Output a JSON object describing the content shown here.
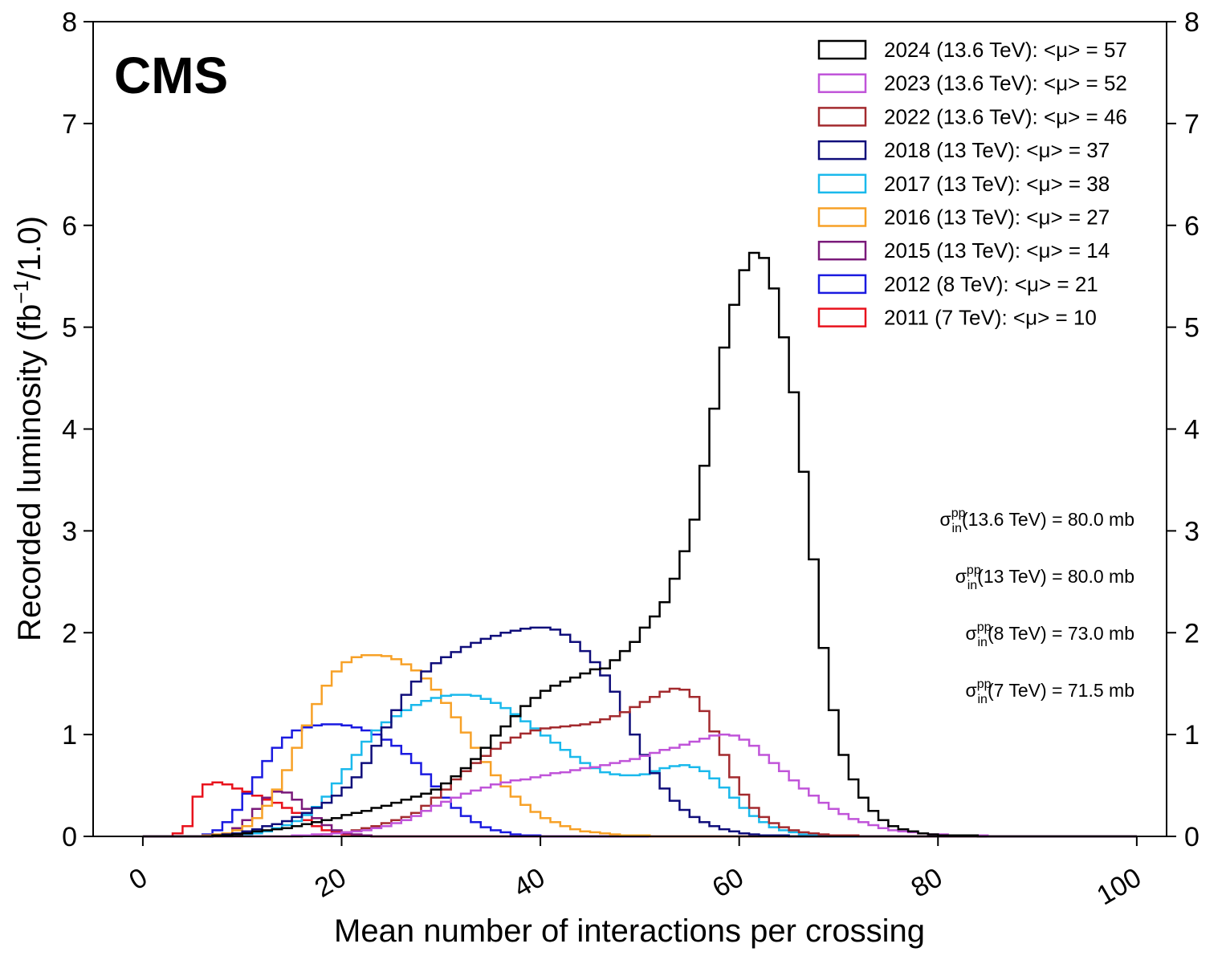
{
  "chart_data": {
    "type": "step-histogram",
    "experiment_label": "CMS",
    "xlabel": "Mean number of interactions per crossing",
    "ylabel": {
      "prefix": "Recorded luminosity (fb",
      "sup": "−1",
      "suffix": "/1.0)"
    },
    "xlim": [
      -5,
      103
    ],
    "ylim": [
      0,
      8
    ],
    "x_ticks": [
      0,
      20,
      40,
      60,
      80,
      100
    ],
    "x_tick_labels": [
      "0",
      "20",
      "40",
      "60",
      "80",
      "100"
    ],
    "y_ticks": [
      0,
      1,
      2,
      3,
      4,
      5,
      6,
      7,
      8
    ],
    "y_tick_labels": [
      "0",
      "1",
      "2",
      "3",
      "4",
      "5",
      "6",
      "7",
      "8"
    ],
    "grid": false,
    "legend_position": "top-right",
    "bin_width": 1,
    "cross_sections": [
      {
        "sym": "σ",
        "sup": "pp",
        "sub": "in",
        "text": "(13.6 TeV) = 80.0 mb"
      },
      {
        "sym": "σ",
        "sup": "pp",
        "sub": "in",
        "text": "(13 TeV) = 80.0 mb"
      },
      {
        "sym": "σ",
        "sup": "pp",
        "sub": "in",
        "text": "(8 TeV) = 73.0 mb"
      },
      {
        "sym": "σ",
        "sup": "pp",
        "sub": "in",
        "text": "(7 TeV) = 71.5 mb"
      }
    ],
    "series": [
      {
        "name": "2024 (13.6 TeV): <μ> = 57",
        "color": "#000000",
        "x_start": 0,
        "values": [
          0,
          0,
          0,
          0,
          0,
          0,
          0,
          0.01,
          0.01,
          0.02,
          0.03,
          0.05,
          0.06,
          0.07,
          0.08,
          0.1,
          0.12,
          0.14,
          0.16,
          0.18,
          0.21,
          0.23,
          0.25,
          0.28,
          0.3,
          0.33,
          0.36,
          0.39,
          0.42,
          0.46,
          0.52,
          0.59,
          0.67,
          0.76,
          0.87,
          0.99,
          1.08,
          1.18,
          1.28,
          1.36,
          1.43,
          1.48,
          1.52,
          1.56,
          1.6,
          1.64,
          1.65,
          1.73,
          1.82,
          1.91,
          2.05,
          2.16,
          2.3,
          2.53,
          2.8,
          3.11,
          3.64,
          4.2,
          4.8,
          5.22,
          5.56,
          5.73,
          5.68,
          5.38,
          4.9,
          4.36,
          3.58,
          2.72,
          1.85,
          1.24,
          0.8,
          0.56,
          0.38,
          0.25,
          0.16,
          0.1,
          0.07,
          0.05,
          0.03,
          0.02,
          0.01,
          0.01,
          0.01,
          0.01,
          0,
          0,
          0,
          0,
          0,
          0,
          0,
          0,
          0,
          0,
          0,
          0,
          0,
          0,
          0,
          0
        ]
      },
      {
        "name": "2023 (13.6 TeV): <μ> = 52",
        "color": "#c054d9",
        "x_start": 0,
        "values": [
          0,
          0,
          0,
          0,
          0,
          0,
          0,
          0,
          0,
          0,
          0,
          0,
          0,
          0,
          0,
          0.01,
          0.01,
          0.02,
          0.02,
          0.03,
          0.04,
          0.05,
          0.06,
          0.08,
          0.1,
          0.13,
          0.16,
          0.2,
          0.25,
          0.3,
          0.34,
          0.38,
          0.42,
          0.45,
          0.48,
          0.51,
          0.53,
          0.55,
          0.56,
          0.58,
          0.6,
          0.62,
          0.63,
          0.65,
          0.67,
          0.68,
          0.7,
          0.72,
          0.74,
          0.76,
          0.79,
          0.82,
          0.85,
          0.87,
          0.9,
          0.93,
          0.96,
          0.99,
          1.0,
          0.99,
          0.95,
          0.89,
          0.8,
          0.72,
          0.64,
          0.55,
          0.47,
          0.4,
          0.33,
          0.27,
          0.22,
          0.17,
          0.14,
          0.11,
          0.08,
          0.06,
          0.05,
          0.04,
          0.03,
          0.02,
          0.02,
          0.01,
          0.01,
          0.01,
          0.01,
          0,
          0,
          0,
          0,
          0,
          0,
          0,
          0,
          0,
          0,
          0,
          0,
          0,
          0,
          0
        ]
      },
      {
        "name": "2022 (13.6 TeV): <μ> = 46",
        "color": "#a32a2e",
        "x_start": 0,
        "values": [
          0,
          0,
          0,
          0,
          0,
          0,
          0,
          0,
          0,
          0,
          0,
          0,
          0,
          0,
          0,
          0,
          0.01,
          0.01,
          0.02,
          0.03,
          0.04,
          0.06,
          0.08,
          0.1,
          0.13,
          0.16,
          0.19,
          0.23,
          0.3,
          0.38,
          0.46,
          0.56,
          0.64,
          0.72,
          0.79,
          0.86,
          0.92,
          0.97,
          1.01,
          1.04,
          1.06,
          1.07,
          1.08,
          1.09,
          1.1,
          1.12,
          1.15,
          1.18,
          1.22,
          1.27,
          1.32,
          1.37,
          1.42,
          1.45,
          1.44,
          1.37,
          1.23,
          1.03,
          0.8,
          0.58,
          0.41,
          0.28,
          0.19,
          0.13,
          0.09,
          0.06,
          0.04,
          0.03,
          0.02,
          0.01,
          0.01,
          0.01,
          0,
          0,
          0,
          0,
          0,
          0,
          0,
          0,
          0,
          0,
          0,
          0,
          0,
          0,
          0,
          0,
          0,
          0,
          0,
          0,
          0,
          0,
          0,
          0,
          0,
          0,
          0,
          0
        ]
      },
      {
        "name": "2018 (13 TeV): <μ> = 37",
        "color": "#0f0d7a",
        "x_start": 0,
        "values": [
          0,
          0,
          0,
          0,
          0,
          0,
          0,
          0.01,
          0.02,
          0.03,
          0.05,
          0.07,
          0.1,
          0.12,
          0.15,
          0.19,
          0.23,
          0.28,
          0.33,
          0.4,
          0.48,
          0.58,
          0.72,
          0.89,
          1.07,
          1.24,
          1.39,
          1.52,
          1.62,
          1.7,
          1.76,
          1.81,
          1.86,
          1.9,
          1.94,
          1.97,
          2.0,
          2.02,
          2.04,
          2.05,
          2.05,
          2.03,
          1.98,
          1.91,
          1.82,
          1.71,
          1.58,
          1.42,
          1.22,
          1.0,
          0.8,
          0.62,
          0.47,
          0.35,
          0.26,
          0.19,
          0.14,
          0.1,
          0.07,
          0.05,
          0.03,
          0.02,
          0.01,
          0.01,
          0.01,
          0,
          0,
          0,
          0,
          0,
          0,
          0,
          0,
          0,
          0,
          0,
          0,
          0,
          0,
          0,
          0,
          0,
          0,
          0,
          0,
          0,
          0,
          0,
          0,
          0,
          0,
          0,
          0,
          0,
          0,
          0,
          0,
          0,
          0,
          0
        ]
      },
      {
        "name": "2017 (13 TeV): <μ> = 38",
        "color": "#1ab9ec",
        "x_start": 0,
        "values": [
          0,
          0,
          0,
          0,
          0,
          0,
          0,
          0,
          0,
          0.01,
          0.02,
          0.03,
          0.05,
          0.08,
          0.11,
          0.15,
          0.21,
          0.29,
          0.39,
          0.52,
          0.66,
          0.8,
          0.93,
          1.04,
          1.12,
          1.18,
          1.24,
          1.29,
          1.33,
          1.36,
          1.38,
          1.39,
          1.39,
          1.38,
          1.35,
          1.31,
          1.26,
          1.2,
          1.13,
          1.06,
          0.99,
          0.92,
          0.85,
          0.78,
          0.72,
          0.67,
          0.63,
          0.61,
          0.6,
          0.6,
          0.61,
          0.64,
          0.67,
          0.69,
          0.7,
          0.68,
          0.64,
          0.57,
          0.48,
          0.38,
          0.28,
          0.2,
          0.14,
          0.09,
          0.06,
          0.04,
          0.02,
          0.01,
          0.01,
          0,
          0,
          0,
          0,
          0,
          0,
          0,
          0,
          0,
          0,
          0,
          0,
          0,
          0,
          0,
          0,
          0,
          0,
          0,
          0,
          0,
          0,
          0,
          0,
          0,
          0,
          0,
          0,
          0,
          0,
          0
        ]
      },
      {
        "name": "2016 (13 TeV): <μ> = 27",
        "color": "#f7a127",
        "x_start": 0,
        "values": [
          0,
          0,
          0,
          0,
          0,
          0,
          0.01,
          0.02,
          0.03,
          0.06,
          0.1,
          0.18,
          0.3,
          0.46,
          0.65,
          0.87,
          1.09,
          1.3,
          1.48,
          1.62,
          1.71,
          1.76,
          1.78,
          1.78,
          1.77,
          1.74,
          1.69,
          1.63,
          1.55,
          1.44,
          1.31,
          1.17,
          1.02,
          0.87,
          0.73,
          0.6,
          0.49,
          0.39,
          0.31,
          0.24,
          0.18,
          0.14,
          0.1,
          0.07,
          0.05,
          0.04,
          0.03,
          0.02,
          0.01,
          0.01,
          0.01,
          0,
          0,
          0,
          0,
          0,
          0,
          0,
          0,
          0,
          0,
          0,
          0,
          0,
          0,
          0,
          0,
          0,
          0,
          0,
          0,
          0,
          0,
          0,
          0,
          0,
          0,
          0,
          0,
          0,
          0,
          0,
          0,
          0,
          0,
          0,
          0,
          0,
          0,
          0,
          0,
          0,
          0,
          0,
          0,
          0,
          0,
          0,
          0,
          0
        ]
      },
      {
        "name": "2015 (13 TeV): <μ> = 14",
        "color": "#7a1a7a",
        "x_start": 0,
        "values": [
          0,
          0,
          0,
          0,
          0,
          0,
          0,
          0.01,
          0.03,
          0.08,
          0.16,
          0.27,
          0.38,
          0.44,
          0.43,
          0.36,
          0.27,
          0.18,
          0.11,
          0.06,
          0.03,
          0.02,
          0.01,
          0,
          0,
          0,
          0,
          0,
          0,
          0,
          0,
          0,
          0,
          0,
          0,
          0,
          0,
          0,
          0,
          0,
          0,
          0,
          0,
          0,
          0,
          0,
          0,
          0,
          0,
          0,
          0,
          0,
          0,
          0,
          0,
          0,
          0,
          0,
          0,
          0,
          0,
          0,
          0,
          0,
          0,
          0,
          0,
          0,
          0,
          0,
          0,
          0,
          0,
          0,
          0,
          0,
          0,
          0,
          0,
          0,
          0,
          0,
          0,
          0,
          0,
          0,
          0,
          0,
          0,
          0,
          0,
          0,
          0,
          0,
          0,
          0,
          0,
          0,
          0,
          0
        ]
      },
      {
        "name": "2012 (8 TeV): <μ> = 21",
        "color": "#1a1ae0",
        "x_start": 0,
        "values": [
          0,
          0,
          0,
          0,
          0,
          0,
          0.02,
          0.06,
          0.14,
          0.26,
          0.42,
          0.58,
          0.74,
          0.87,
          0.97,
          1.04,
          1.07,
          1.09,
          1.1,
          1.1,
          1.09,
          1.07,
          1.04,
          1.0,
          0.95,
          0.89,
          0.81,
          0.72,
          0.61,
          0.49,
          0.38,
          0.28,
          0.2,
          0.14,
          0.09,
          0.06,
          0.04,
          0.02,
          0.01,
          0.01,
          0,
          0,
          0,
          0,
          0,
          0,
          0,
          0,
          0,
          0,
          0,
          0,
          0,
          0,
          0,
          0,
          0,
          0,
          0,
          0,
          0,
          0,
          0,
          0,
          0,
          0,
          0,
          0,
          0,
          0,
          0,
          0,
          0,
          0,
          0,
          0,
          0,
          0,
          0,
          0,
          0,
          0,
          0,
          0,
          0,
          0,
          0,
          0,
          0,
          0,
          0,
          0,
          0,
          0,
          0,
          0,
          0,
          0,
          0,
          0
        ]
      },
      {
        "name": "2011 (7 TeV): <μ> = 10",
        "color": "#e8121c",
        "x_start": 0,
        "values": [
          0,
          0,
          0,
          0.03,
          0.1,
          0.39,
          0.51,
          0.53,
          0.51,
          0.47,
          0.44,
          0.4,
          0.36,
          0.33,
          0.28,
          0.23,
          0.16,
          0.1,
          0.06,
          0.04,
          0.02,
          0.01,
          0.01,
          0,
          0,
          0,
          0,
          0,
          0,
          0,
          0,
          0,
          0,
          0,
          0,
          0,
          0,
          0,
          0,
          0,
          0,
          0,
          0,
          0,
          0,
          0,
          0,
          0,
          0,
          0,
          0,
          0,
          0,
          0,
          0,
          0,
          0,
          0,
          0,
          0,
          0,
          0,
          0,
          0,
          0,
          0,
          0,
          0,
          0,
          0,
          0,
          0,
          0,
          0,
          0,
          0,
          0,
          0,
          0,
          0,
          0,
          0,
          0,
          0,
          0,
          0,
          0,
          0,
          0,
          0,
          0,
          0,
          0,
          0,
          0,
          0,
          0,
          0,
          0,
          0
        ]
      }
    ]
  }
}
